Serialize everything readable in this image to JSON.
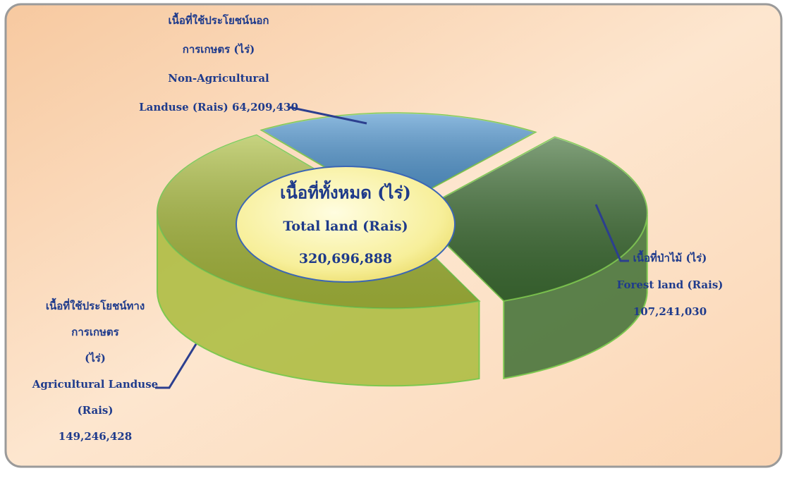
{
  "chart_data": {
    "type": "pie",
    "center_title": [
      "เนื้อที่ทั้งหมด (ไร่)",
      "Total land (Rais)"
    ],
    "total": 320696888,
    "total_label": "320,696,888",
    "categories": [
      {
        "th": [
          "เนื้อที่ใช้ประโยชน์นอก",
          "การเกษตร (ไร่)"
        ],
        "en": [
          "Non-Agricultural",
          "Landuse (Rais)"
        ]
      },
      {
        "th": [
          "เนื้อที่ป่าไม้ (ไร่)"
        ],
        "en": [
          "Forest land (Rais)"
        ]
      },
      {
        "th": [
          "เนื้อที่ใช้ประโยชน์ทาง",
          "การเกษตร",
          "(ไร่)"
        ],
        "en": [
          "Agricultural Landuse",
          "(Rais)"
        ]
      }
    ],
    "values": [
      64209430,
      107241030,
      149246428
    ],
    "value_labels": [
      "64,209,430",
      "107,241,030",
      "149,246,428"
    ],
    "colors": [
      "#4f95cf",
      "#3e6e34",
      "#a9bb3c"
    ]
  }
}
